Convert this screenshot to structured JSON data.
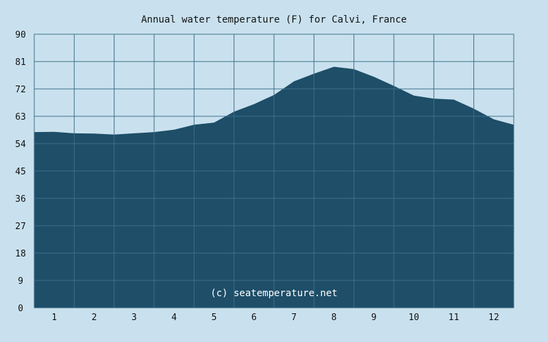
{
  "chart_data": {
    "type": "area",
    "title": "Annual water temperature (F) for Calvi, France",
    "watermark": "(c) seatemperature.net",
    "xlabel": "",
    "ylabel": "",
    "ylim": [
      0,
      90
    ],
    "xlim": [
      0.5,
      12.5
    ],
    "yticks": [
      0,
      9,
      18,
      27,
      36,
      45,
      54,
      63,
      72,
      81,
      90
    ],
    "xticks": [
      1,
      2,
      3,
      4,
      5,
      6,
      7,
      8,
      9,
      10,
      11,
      12
    ],
    "grid": true,
    "legend": "none",
    "colors": {
      "background": "#c9e1ee",
      "fill": "#1e4e68",
      "grid": "#3d6e8a"
    },
    "x": [
      0.5,
      1.0,
      1.5,
      2.0,
      2.5,
      3.0,
      3.5,
      4.0,
      4.5,
      5.0,
      5.5,
      6.0,
      6.5,
      7.0,
      7.5,
      8.0,
      8.5,
      9.0,
      9.5,
      10.0,
      10.5,
      11.0,
      11.5,
      12.0,
      12.5
    ],
    "y": [
      57.8,
      57.9,
      57.4,
      57.3,
      57.0,
      57.4,
      57.8,
      58.6,
      60.2,
      60.9,
      64.5,
      67.0,
      70.0,
      74.5,
      77.0,
      79.3,
      78.5,
      76.0,
      73.0,
      69.8,
      68.8,
      68.5,
      65.5,
      62.0,
      60.2
    ]
  }
}
